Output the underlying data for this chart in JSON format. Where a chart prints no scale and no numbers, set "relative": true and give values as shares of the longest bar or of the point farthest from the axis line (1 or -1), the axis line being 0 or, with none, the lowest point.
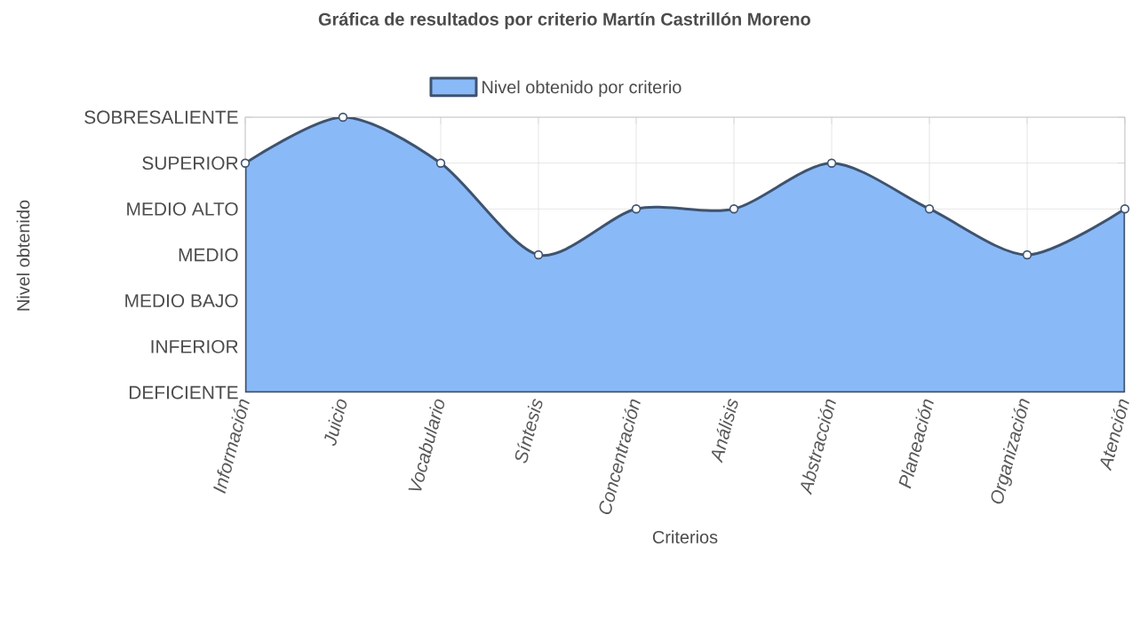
{
  "chart_data": {
    "type": "area",
    "title": "Gráfica de resultados por criterio Martín Castrillón Moreno",
    "xlabel": "Criterios",
    "categories": [
      "Información",
      "Juicio",
      "Vocabulario",
      "Síntesis",
      "Concentración",
      "Análisis",
      "Abstracción",
      "Planeación",
      "Organización",
      "Atención"
    ],
    "series": [
      {
        "name": "Nivel obtenido por criterio",
        "color": "#8ab9f7",
        "values": [
          0.833,
          1,
          0.833,
          0.5,
          0.667,
          0.667,
          0.833,
          0.667,
          0.5,
          0.667
        ]
      }
    ],
    "relative": true,
    "annotations": [
      "Nivel obtenido",
      "SOBRESALIENTE",
      "SUPERIOR",
      "MEDIO ALTO",
      "MEDIO",
      "MEDIO BAJO",
      "INFERIOR",
      "DEFICIENTE"
    ],
    "grid": true,
    "legend": "top",
    "marker": "circle"
  }
}
